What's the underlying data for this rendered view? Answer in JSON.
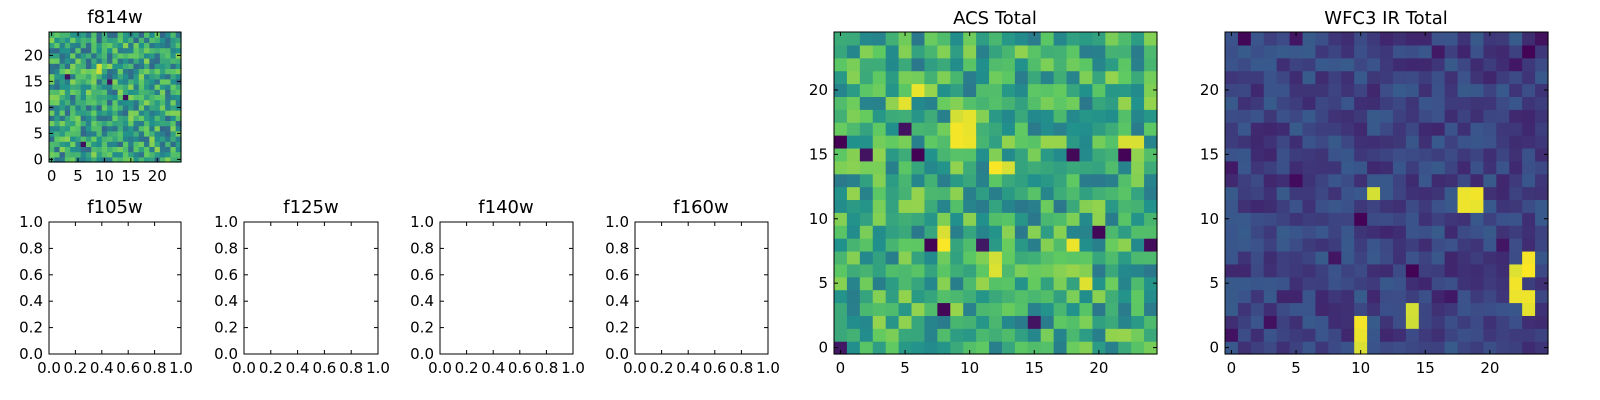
{
  "figure_background": "#ffffff",
  "colormap": "viridis",
  "colormap_stops": [
    "#440154",
    "#3b528b",
    "#21918c",
    "#5ec962",
    "#fde725"
  ],
  "chart_data": [
    {
      "id": "f814w",
      "type": "heatmap",
      "title": "f814w",
      "xlim": [
        -0.5,
        24.5
      ],
      "ylim": [
        -0.5,
        24.5
      ],
      "xticks": [
        0,
        5,
        10,
        15,
        20
      ],
      "yticks": [
        0,
        5,
        10,
        15,
        20
      ],
      "origin": "lower",
      "grid_size": [
        25,
        25
      ],
      "value_range": [
        0,
        1
      ],
      "random_seed": 814,
      "value_model": "noise",
      "base_level": 0.58,
      "noise_amplitude": 0.25,
      "bright_cells": [
        [
          9,
          17
        ],
        [
          9,
          18
        ]
      ],
      "dark_cells": [
        [
          3,
          16
        ],
        [
          6,
          3
        ],
        [
          11,
          15
        ],
        [
          14,
          12
        ]
      ]
    },
    {
      "id": "f105w",
      "type": "heatmap",
      "title": "f105w",
      "xlim": [
        0.0,
        1.0
      ],
      "ylim": [
        0.0,
        1.0
      ],
      "xticks": [
        "0.0",
        "0.2",
        "0.4",
        "0.6",
        "0.8",
        "1.0"
      ],
      "yticks": [
        "0.0",
        "0.2",
        "0.4",
        "0.6",
        "0.8",
        "1.0"
      ],
      "empty": true
    },
    {
      "id": "f125w",
      "type": "heatmap",
      "title": "f125w",
      "xlim": [
        0.0,
        1.0
      ],
      "ylim": [
        0.0,
        1.0
      ],
      "xticks": [
        "0.0",
        "0.2",
        "0.4",
        "0.6",
        "0.8",
        "1.0"
      ],
      "yticks": [
        "0.0",
        "0.2",
        "0.4",
        "0.6",
        "0.8",
        "1.0"
      ],
      "empty": true
    },
    {
      "id": "f140w",
      "type": "heatmap",
      "title": "f140w",
      "xlim": [
        0.0,
        1.0
      ],
      "ylim": [
        0.0,
        1.0
      ],
      "xticks": [
        "0.0",
        "0.2",
        "0.4",
        "0.6",
        "0.8",
        "1.0"
      ],
      "yticks": [
        "0.0",
        "0.2",
        "0.4",
        "0.6",
        "0.8",
        "1.0"
      ],
      "empty": true
    },
    {
      "id": "f160w",
      "type": "heatmap",
      "title": "f160w",
      "xlim": [
        0.0,
        1.0
      ],
      "ylim": [
        0.0,
        1.0
      ],
      "xticks": [
        "0.0",
        "0.2",
        "0.4",
        "0.6",
        "0.8",
        "1.0"
      ],
      "yticks": [
        "0.0",
        "0.2",
        "0.4",
        "0.6",
        "0.8",
        "1.0"
      ],
      "empty": true
    },
    {
      "id": "acs-total",
      "type": "heatmap",
      "title": "ACS Total",
      "xlim": [
        -0.5,
        24.5
      ],
      "ylim": [
        -0.5,
        24.5
      ],
      "xticks": [
        0,
        5,
        10,
        15,
        20
      ],
      "yticks": [
        0,
        5,
        10,
        15,
        20
      ],
      "origin": "lower",
      "grid_size": [
        25,
        25
      ],
      "value_range": [
        0,
        1
      ],
      "random_seed": 1234,
      "value_model": "noise",
      "base_level": 0.62,
      "noise_amplitude": 0.22,
      "bright_cells": [
        [
          9,
          18
        ],
        [
          10,
          18
        ],
        [
          9,
          17
        ],
        [
          10,
          17
        ],
        [
          9,
          16
        ],
        [
          10,
          16
        ],
        [
          12,
          14
        ],
        [
          13,
          14
        ],
        [
          5,
          19
        ],
        [
          6,
          20
        ],
        [
          22,
          16
        ],
        [
          23,
          16
        ],
        [
          8,
          8
        ],
        [
          8,
          9
        ],
        [
          12,
          6
        ],
        [
          12,
          7
        ],
        [
          18,
          8
        ],
        [
          19,
          5
        ]
      ],
      "dark_cells": [
        [
          0,
          16
        ],
        [
          5,
          17
        ],
        [
          2,
          15
        ],
        [
          6,
          15
        ],
        [
          18,
          15
        ],
        [
          22,
          15
        ],
        [
          7,
          8
        ],
        [
          11,
          8
        ],
        [
          20,
          9
        ],
        [
          8,
          3
        ],
        [
          15,
          2
        ],
        [
          0,
          0
        ],
        [
          24,
          8
        ]
      ]
    },
    {
      "id": "wfc3-ir-total",
      "type": "heatmap",
      "title": "WFC3 IR Total",
      "xlim": [
        -0.5,
        24.5
      ],
      "ylim": [
        -0.5,
        24.5
      ],
      "xticks": [
        0,
        5,
        10,
        15,
        20
      ],
      "yticks": [
        0,
        5,
        10,
        15,
        20
      ],
      "origin": "lower",
      "grid_size": [
        25,
        25
      ],
      "value_range": [
        0,
        1
      ],
      "random_seed": 4321,
      "value_model": "noise",
      "base_level": 0.2,
      "noise_amplitude": 0.09,
      "bright_cells": [
        [
          11,
          12
        ],
        [
          19,
          12
        ],
        [
          18,
          12
        ],
        [
          18,
          11
        ],
        [
          19,
          11
        ],
        [
          10,
          1
        ],
        [
          10,
          2
        ],
        [
          14,
          3
        ],
        [
          14,
          2
        ],
        [
          22,
          6
        ],
        [
          23,
          6
        ],
        [
          23,
          7
        ],
        [
          22,
          4
        ],
        [
          23,
          4
        ],
        [
          23,
          3
        ],
        [
          10,
          0
        ],
        [
          22,
          5
        ]
      ],
      "dark_cells": [
        [
          5,
          24
        ],
        [
          23,
          23
        ],
        [
          22,
          22
        ],
        [
          10,
          10
        ],
        [
          5,
          13
        ],
        [
          8,
          7
        ],
        [
          14,
          6
        ],
        [
          0,
          1
        ],
        [
          21,
          8
        ],
        [
          17,
          4
        ],
        [
          3,
          2
        ],
        [
          16,
          23
        ],
        [
          1,
          24
        ],
        [
          24,
          24
        ],
        [
          0,
          14
        ]
      ]
    }
  ]
}
